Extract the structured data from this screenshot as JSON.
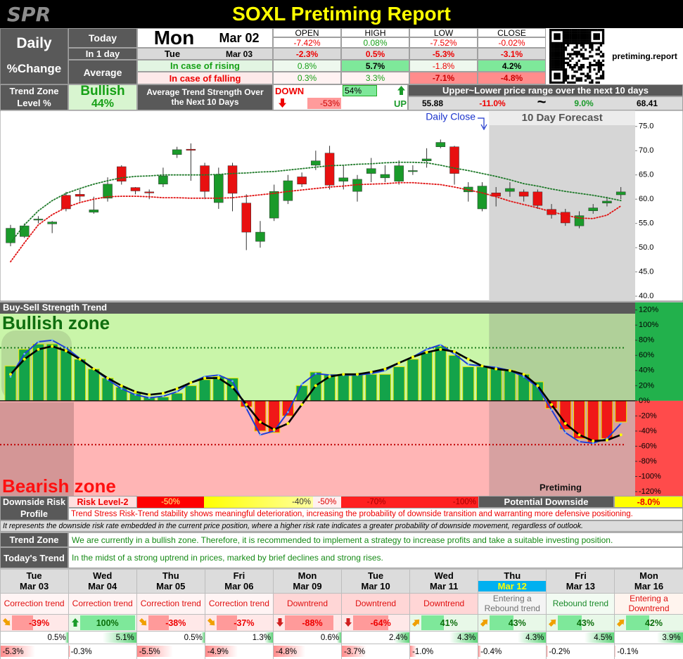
{
  "header": {
    "logo": "SPR",
    "title": "SOXL Pretiming Report"
  },
  "summary": {
    "daily_label": "Daily",
    "change_label": "%Change",
    "today_label": "Today",
    "day": "Mon",
    "date": "Mar 02",
    "columns": [
      "OPEN",
      "HIGH",
      "LOW",
      "CLOSE"
    ],
    "today_values": [
      "-7.42%",
      "0.08%",
      "-7.52%",
      "-0.02%"
    ],
    "next_label": "In 1 day",
    "next_day": "Tue",
    "next_date": "Mar 03",
    "next_values": [
      "-2.3%",
      "0.5%",
      "-5.3%",
      "-3.1%"
    ],
    "average_label": "Average",
    "rising_label": "In case of rising",
    "rising_values": [
      "0.8%",
      "5.7%",
      "-1.8%",
      "4.2%"
    ],
    "falling_label": "In case of falling",
    "falling_values": [
      "0.3%",
      "3.3%",
      "-7.1%",
      "-4.8%"
    ],
    "site": "pretiming.report"
  },
  "trend": {
    "zone_label": "Trend Zone",
    "level_label": "Level %",
    "zone": "Bullish",
    "level": "44%",
    "strength_label": "Average Trend Strength Over the Next 10 Days",
    "down_label": "DOWN",
    "down_value": "-53%",
    "up_value": "54%",
    "up_label": "UP"
  },
  "range": {
    "label": "Upper~Lower price range over the next 10 days",
    "lower": "55.88",
    "lower_pct": "-11.0%",
    "separator": "~",
    "upper_pct": "9.0%",
    "upper": "68.41"
  },
  "chart_data": [
    {
      "type": "candlestick",
      "annotations": {
        "daily_close": "Daily Close",
        "forecast": "10 Day Forecast"
      },
      "forecast_start": 35,
      "up_color": "#1a9a2a",
      "down_color": "#e81010",
      "open": [
        51.0,
        52.3,
        55.7,
        54.9,
        60.8,
        61.0,
        57.3,
        60.2,
        66.7,
        62.4,
        61.5,
        63.1,
        69.2,
        70.3,
        66.9,
        59.3,
        66.9,
        59.2,
        51.3,
        56.1,
        59.7,
        64.6,
        67.0,
        69.5,
        63.7,
        61.6,
        65.3,
        64.4,
        63.7,
        65.8,
        67.9,
        70.8,
        70.8,
        61.5,
        58.0,
        61.3,
        61.6,
        61.5,
        61.5,
        57.9,
        57.3,
        54.5,
        57.6,
        59.2,
        60.9
      ],
      "high": [
        54.7,
        55.0,
        56.5,
        55.5,
        61.5,
        62.0,
        60.5,
        64.5,
        67.0,
        62.5,
        62.0,
        66.5,
        70.8,
        71.5,
        67.5,
        66.5,
        67.5,
        61.0,
        55.5,
        63.0,
        65.0,
        65.5,
        70.0,
        71.0,
        67.0,
        65.0,
        68.5,
        67.0,
        68.0,
        67.0,
        70.5,
        72.3,
        71.0,
        63.5,
        63.5,
        62.5,
        63.5,
        62.0,
        62.0,
        59.0,
        58.0,
        57.5,
        59.0,
        60.5,
        62.5
      ],
      "low": [
        50.3,
        52.0,
        55.0,
        53.0,
        57.5,
        59.5,
        57.0,
        59.5,
        63.0,
        61.0,
        60.0,
        62.5,
        68.5,
        63.8,
        60.0,
        58.0,
        57.5,
        49.5,
        50.0,
        55.5,
        59.0,
        62.5,
        66.0,
        62.0,
        62.0,
        59.5,
        63.5,
        63.5,
        63.0,
        65.0,
        66.5,
        70.5,
        63.0,
        59.5,
        57.5,
        58.5,
        60.5,
        59.5,
        58.0,
        56.0,
        54.5,
        54.0,
        57.0,
        58.5,
        60.0
      ],
      "close": [
        54.0,
        54.5,
        55.9,
        55.3,
        58.0,
        60.6,
        57.8,
        63.1,
        63.7,
        61.7,
        61.3,
        64.8,
        70.2,
        70.2,
        61.6,
        65.1,
        61.2,
        53.2,
        53.2,
        61.6,
        63.8,
        63.1,
        67.9,
        62.9,
        64.4,
        64.1,
        66.3,
        65.1,
        66.9,
        65.9,
        68.3,
        71.7,
        65.3,
        62.5,
        62.7,
        60.6,
        62.2,
        60.6,
        58.7,
        56.8,
        55.1,
        56.6,
        58.2,
        59.6,
        61.5
      ],
      "series": [
        {
          "color": "#1f7a2a",
          "values": [
            51.0,
            54.7,
            57.6,
            59.7,
            61.2,
            62.2,
            63.1,
            63.8,
            64.4,
            64.7,
            64.8,
            65.0,
            65.0,
            65.0,
            65.0,
            65.1,
            65.3,
            65.4,
            65.6,
            65.7,
            66.0,
            66.3,
            66.6,
            66.9,
            67.0,
            67.2,
            67.3,
            67.5,
            67.6,
            67.6,
            67.5,
            67.0,
            66.4,
            65.9,
            65.3,
            64.7,
            64.0,
            63.2,
            62.7,
            62.1,
            61.6,
            61.2,
            60.8,
            60.3,
            59.7
          ]
        },
        {
          "color": "#e01010",
          "values": [
            47.1,
            51.0,
            54.7,
            56.8,
            58.3,
            59.3,
            60.0,
            60.5,
            60.6,
            60.6,
            60.5,
            60.3,
            60.3,
            60.2,
            60.2,
            60.2,
            60.3,
            60.6,
            60.9,
            61.2,
            61.6,
            61.9,
            62.2,
            62.5,
            62.7,
            63.0,
            63.1,
            63.2,
            63.4,
            63.4,
            63.2,
            63.0,
            62.5,
            61.9,
            61.3,
            60.5,
            59.6,
            58.9,
            58.2,
            57.4,
            56.7,
            56.1,
            56.0,
            56.7,
            58.6
          ]
        }
      ],
      "ylim": [
        39.0,
        78.3
      ],
      "yticks": [
        {
          "value": 75,
          "label": "75.0"
        },
        {
          "value": 70,
          "label": "70.0"
        },
        {
          "value": 65,
          "label": "65.0"
        },
        {
          "value": 60,
          "label": "60.0"
        },
        {
          "value": 55,
          "label": "55.0"
        },
        {
          "value": 50,
          "label": "50.0"
        },
        {
          "value": 45,
          "label": "45.0"
        },
        {
          "value": 40,
          "label": "40.0"
        }
      ]
    },
    {
      "type": "bar",
      "title": "Buy-Sell Strength Trend",
      "annotations": {
        "bullish": "Bullish zone",
        "bearish": "Bearish zone",
        "brand": "Pretiming"
      },
      "forecast_start": 35,
      "pos_color": "#13a34a",
      "neg_color": "#f01818",
      "edge_color": "#e8e800",
      "values": [
        46,
        68,
        75,
        75,
        68,
        55,
        42,
        30,
        18,
        10,
        5,
        5,
        10,
        20,
        28,
        32,
        30,
        -8,
        -40,
        -42,
        -20,
        20,
        38,
        35,
        35,
        35,
        35,
        35,
        45,
        55,
        65,
        72,
        60,
        45,
        45,
        43,
        40,
        35,
        25,
        -10,
        -38,
        -50,
        -55,
        -50,
        -28
      ],
      "series": [
        {
          "color": "#1f3fd8",
          "marker_color": "#6fb0ff",
          "values": [
            32,
            62,
            78,
            80,
            70,
            56,
            42,
            28,
            16,
            8,
            4,
            6,
            12,
            24,
            32,
            34,
            26,
            -10,
            -45,
            -40,
            -15,
            22,
            36,
            34,
            34,
            34,
            36,
            40,
            50,
            58,
            68,
            74,
            62,
            48,
            46,
            44,
            40,
            32,
            18,
            -12,
            -42,
            -54,
            -56,
            -50,
            -30
          ]
        },
        {
          "color": "#000000",
          "marker_color": "#ffff00",
          "values": [
            35,
            55,
            68,
            72,
            66,
            55,
            42,
            30,
            20,
            12,
            8,
            10,
            16,
            24,
            30,
            30,
            18,
            -5,
            -28,
            -38,
            -30,
            -5,
            20,
            32,
            35,
            35,
            38,
            42,
            50,
            58,
            64,
            68,
            65,
            55,
            46,
            42,
            40,
            35,
            20,
            -5,
            -30,
            -45,
            -53,
            -52,
            -45
          ]
        }
      ],
      "reference_lines": [
        {
          "value": 70,
          "color": "#1b7a1b"
        },
        {
          "value": -58,
          "color": "#c00000"
        }
      ],
      "ylim": [
        -125.6,
        130
      ],
      "yticks": [
        {
          "value": 120,
          "label": "120%"
        },
        {
          "value": 100,
          "label": "100%"
        },
        {
          "value": 80,
          "label": "80%"
        },
        {
          "value": 60,
          "label": "60%"
        },
        {
          "value": 40,
          "label": "40%"
        },
        {
          "value": 20,
          "label": "20%"
        },
        {
          "value": 0,
          "label": "0%"
        },
        {
          "value": -20,
          "label": "-20%"
        },
        {
          "value": -40,
          "label": "-40%"
        },
        {
          "value": -60,
          "label": "-60%"
        },
        {
          "value": -80,
          "label": "-80%"
        },
        {
          "value": -100,
          "label": "-100%"
        },
        {
          "value": -120,
          "label": "-120%"
        }
      ]
    }
  ],
  "risk": {
    "label_1": "Downside Risk",
    "label_2": "Profile",
    "level": "Risk Level-2",
    "scale": [
      "-50%",
      "-40%",
      "-50%",
      "-70%",
      "-100%"
    ],
    "potential_label": "Potential Downside",
    "potential": "-8.0%",
    "description": "Trend Stress Risk-Trend stability shows meaningful deterioration, increasing the probability of downside transition and warranting more defensive positioning.",
    "note": "It represents the downside risk rate embedded in the current price position, where a higher risk rate indicates a greater probability of downside movement, regardless of outlook."
  },
  "zone": {
    "label": "Trend Zone",
    "text": "We are currently in a bullish zone. Therefore, it is recommended to implement a strategy to increase profits and take a suitable investing position."
  },
  "today_trend": {
    "label": "Today's Trend",
    "text": "In the midst of a strong uptrend in prices, marked by brief declines and strong rises."
  },
  "forecast": {
    "highlight": 7,
    "days": [
      {
        "day": "Tue",
        "date": "Mar 03",
        "trend": "Correction trend",
        "trend_color": "#e01010",
        "trend_bg": "#fff4f4",
        "strength": "-39%",
        "arrow": "down-right",
        "arrow_color": "#f0a000",
        "high": "0.5%",
        "low": "-5.3%"
      },
      {
        "day": "Wed",
        "date": "Mar 04",
        "trend": "Correction trend",
        "trend_color": "#e01010",
        "trend_bg": "#fff4f4",
        "strength": "100%",
        "arrow": "up",
        "arrow_color": "#1a9a2a",
        "high": "5.1%",
        "low": "-0.3%"
      },
      {
        "day": "Thu",
        "date": "Mar 05",
        "trend": "Correction trend",
        "trend_color": "#e01010",
        "trend_bg": "#fff4f4",
        "strength": "-38%",
        "arrow": "down-right",
        "arrow_color": "#f0a000",
        "high": "0.5%",
        "low": "-5.5%"
      },
      {
        "day": "Fri",
        "date": "Mar 06",
        "trend": "Correction trend",
        "trend_color": "#e01010",
        "trend_bg": "#fff4f4",
        "strength": "-37%",
        "arrow": "down-right",
        "arrow_color": "#f0a000",
        "high": "1.3%",
        "low": "-4.9%"
      },
      {
        "day": "Mon",
        "date": "Mar 09",
        "trend": "Downtrend",
        "trend_color": "#e01010",
        "trend_bg": "#ffd6d6",
        "strength": "-88%",
        "arrow": "down",
        "arrow_color": "#d02020",
        "high": "0.6%",
        "low": "-4.8%"
      },
      {
        "day": "Tue",
        "date": "Mar 10",
        "trend": "Downtrend",
        "trend_color": "#e01010",
        "trend_bg": "#ffd6d6",
        "strength": "-64%",
        "arrow": "down",
        "arrow_color": "#d02020",
        "high": "2.4%",
        "low": "-3.7%"
      },
      {
        "day": "Wed",
        "date": "Mar 11",
        "trend": "Downtrend",
        "trend_color": "#e01010",
        "trend_bg": "#ffd6d6",
        "strength": "41%",
        "arrow": "up-right",
        "arrow_color": "#f0a000",
        "high": "4.3%",
        "low": "-1.0%"
      },
      {
        "day": "Thu",
        "date": "Mar 12",
        "trend": "Entering a Rebound trend",
        "trend_color": "#707070",
        "trend_bg": "#f4f4f4",
        "strength": "43%",
        "arrow": "up-right",
        "arrow_color": "#f0a000",
        "high": "4.3%",
        "low": "-0.4%"
      },
      {
        "day": "Fri",
        "date": "Mar 13",
        "trend": "Rebound trend",
        "trend_color": "#1a8a2a",
        "trend_bg": "#f2fbf2",
        "strength": "43%",
        "arrow": "up-right",
        "arrow_color": "#f0a000",
        "high": "4.5%",
        "low": "-0.2%"
      },
      {
        "day": "Mon",
        "date": "Mar 16",
        "trend": "Entering a Downtrend",
        "trend_color": "#e01010",
        "trend_bg": "#fff4ee",
        "strength": "42%",
        "arrow": "up-right",
        "arrow_color": "#f0a000",
        "high": "3.9%",
        "low": "-0.1%"
      }
    ]
  }
}
